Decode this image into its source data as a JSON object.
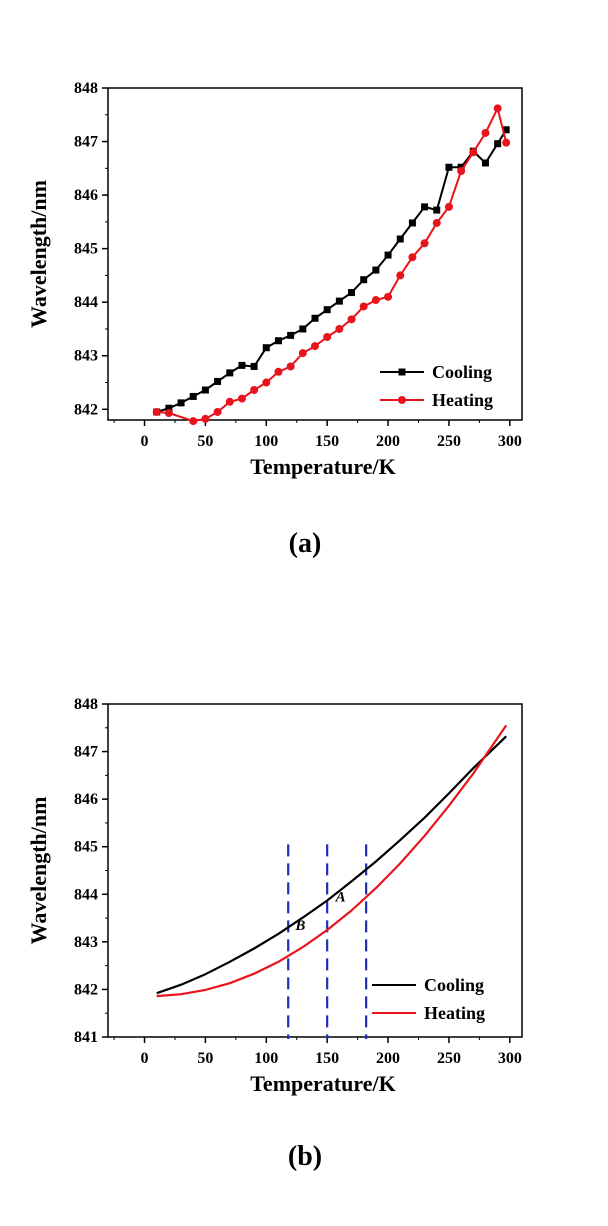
{
  "chart_data": [
    {
      "type": "line",
      "caption": "(a)",
      "xlabel": "Temperature/K",
      "ylabel": "Wavelength/nm",
      "xlim": [
        -30,
        310
      ],
      "ylim": [
        841.8,
        848
      ],
      "xticks": [
        0,
        50,
        100,
        150,
        200,
        250,
        300
      ],
      "yticks": [
        842,
        843,
        844,
        845,
        846,
        847,
        848
      ],
      "grid": false,
      "legend_position": "bottom-right",
      "series": [
        {
          "name": "Cooling",
          "color": "#000000",
          "marker": "square",
          "x": [
            10,
            20,
            30,
            40,
            50,
            60,
            70,
            80,
            90,
            100,
            110,
            120,
            130,
            140,
            150,
            160,
            170,
            180,
            190,
            200,
            210,
            220,
            230,
            240,
            250,
            260,
            270,
            280,
            290,
            297
          ],
          "y": [
            841.95,
            842.02,
            842.12,
            842.24,
            842.36,
            842.52,
            842.68,
            842.82,
            842.8,
            843.15,
            843.28,
            843.38,
            843.5,
            843.7,
            843.86,
            844.02,
            844.18,
            844.42,
            844.6,
            844.88,
            845.18,
            845.48,
            845.78,
            845.72,
            846.52,
            846.52,
            846.82,
            846.6,
            846.96,
            847.22
          ]
        },
        {
          "name": "Heating",
          "color": "#e8141c",
          "marker": "circle",
          "x": [
            10,
            20,
            40,
            50,
            60,
            70,
            80,
            90,
            100,
            110,
            120,
            130,
            140,
            150,
            160,
            170,
            180,
            190,
            200,
            210,
            220,
            230,
            240,
            250,
            260,
            270,
            280,
            290,
            297
          ],
          "y": [
            841.95,
            841.93,
            841.78,
            841.82,
            841.95,
            842.14,
            842.2,
            842.36,
            842.5,
            842.7,
            842.8,
            843.05,
            843.18,
            843.35,
            843.5,
            843.68,
            843.92,
            844.04,
            844.1,
            844.5,
            844.84,
            845.1,
            845.48,
            845.78,
            846.45,
            846.8,
            847.16,
            847.62,
            846.98
          ]
        }
      ]
    },
    {
      "type": "line",
      "caption": "(b)",
      "xlabel": "Temperature/K",
      "ylabel": "Wavelength/nm",
      "xlim": [
        -30,
        310
      ],
      "ylim": [
        841,
        848
      ],
      "xticks": [
        0,
        50,
        100,
        150,
        200,
        250,
        300
      ],
      "yticks": [
        841,
        842,
        843,
        844,
        845,
        846,
        847,
        848
      ],
      "grid": false,
      "legend_position": "bottom-right",
      "series": [
        {
          "name": "Cooling",
          "color": "#000000",
          "x": [
            10,
            30,
            50,
            70,
            90,
            110,
            130,
            150,
            170,
            190,
            210,
            230,
            250,
            270,
            297
          ],
          "y": [
            841.92,
            842.1,
            842.32,
            842.58,
            842.86,
            843.17,
            843.51,
            843.87,
            844.27,
            844.69,
            845.14,
            845.61,
            846.12,
            846.65,
            847.32
          ]
        },
        {
          "name": "Heating",
          "color": "#e8141c",
          "x": [
            10,
            30,
            50,
            70,
            90,
            110,
            130,
            150,
            170,
            190,
            210,
            230,
            250,
            270,
            297
          ],
          "y": [
            841.86,
            841.9,
            841.99,
            842.13,
            842.33,
            842.58,
            842.89,
            843.25,
            843.66,
            844.13,
            844.65,
            845.23,
            845.86,
            846.54,
            847.55
          ]
        }
      ],
      "reference_lines": [
        118,
        150,
        182
      ],
      "region_labels": [
        {
          "text": "A",
          "x": 161,
          "y": 843.85
        },
        {
          "text": "B",
          "x": 128,
          "y": 843.25
        }
      ]
    }
  ]
}
